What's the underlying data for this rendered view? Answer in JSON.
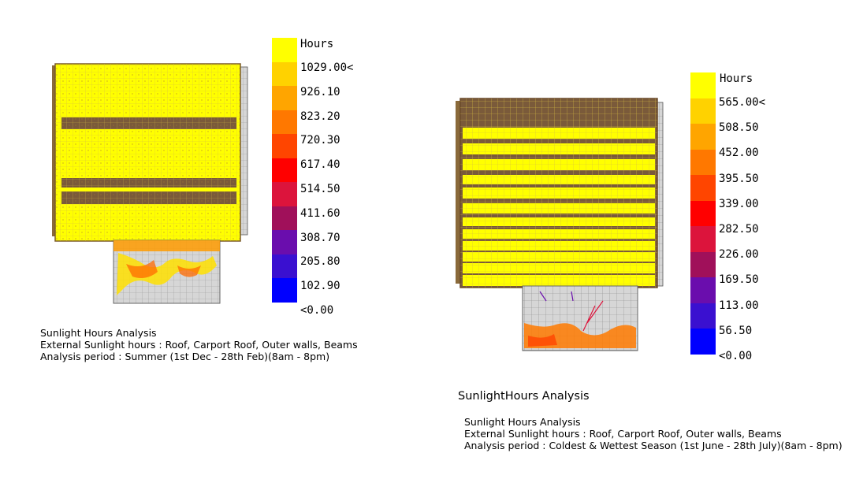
{
  "left_panel": {
    "legend": {
      "title": "Hours",
      "labels": [
        "1029.00<",
        "926.10",
        "823.20",
        "720.30",
        "617.40",
        "514.50",
        "411.60",
        "308.70",
        "205.80",
        "102.90",
        "<0.00"
      ],
      "colors": [
        "#ffff00",
        "#ffd200",
        "#ffa500",
        "#ff7800",
        "#ff4500",
        "#ff0000",
        "#dc143c",
        "#a0105a",
        "#6a0dad",
        "#3a10d0",
        "#0000ff"
      ]
    },
    "caption": {
      "line1": "Sunlight Hours Analysis",
      "line2": "External Sunlight hours : Roof, Carport Roof, Outer walls, Beams",
      "line3": "Analysis period : Summer (1st Dec - 28th Feb)(8am - 8pm)"
    }
  },
  "right_panel": {
    "legend": {
      "title": "Hours",
      "labels": [
        "565.00<",
        "508.50",
        "452.00",
        "395.50",
        "339.00",
        "282.50",
        "226.00",
        "169.50",
        "113.00",
        "56.50",
        "<0.00"
      ],
      "colors": [
        "#ffff00",
        "#ffd200",
        "#ffa500",
        "#ff7800",
        "#ff4500",
        "#ff0000",
        "#dc143c",
        "#a0105a",
        "#6a0dad",
        "#3a10d0",
        "#0000ff"
      ]
    },
    "heading": "SunlightHours Analysis",
    "caption": {
      "line1": "Sunlight Hours Analysis",
      "line2": "External Sunlight hours : Roof, Carport Roof, Outer walls, Beams",
      "line3": "Analysis period : Coldest & Wettest Season (1st June - 28th July)(8am - 8pm)"
    }
  }
}
